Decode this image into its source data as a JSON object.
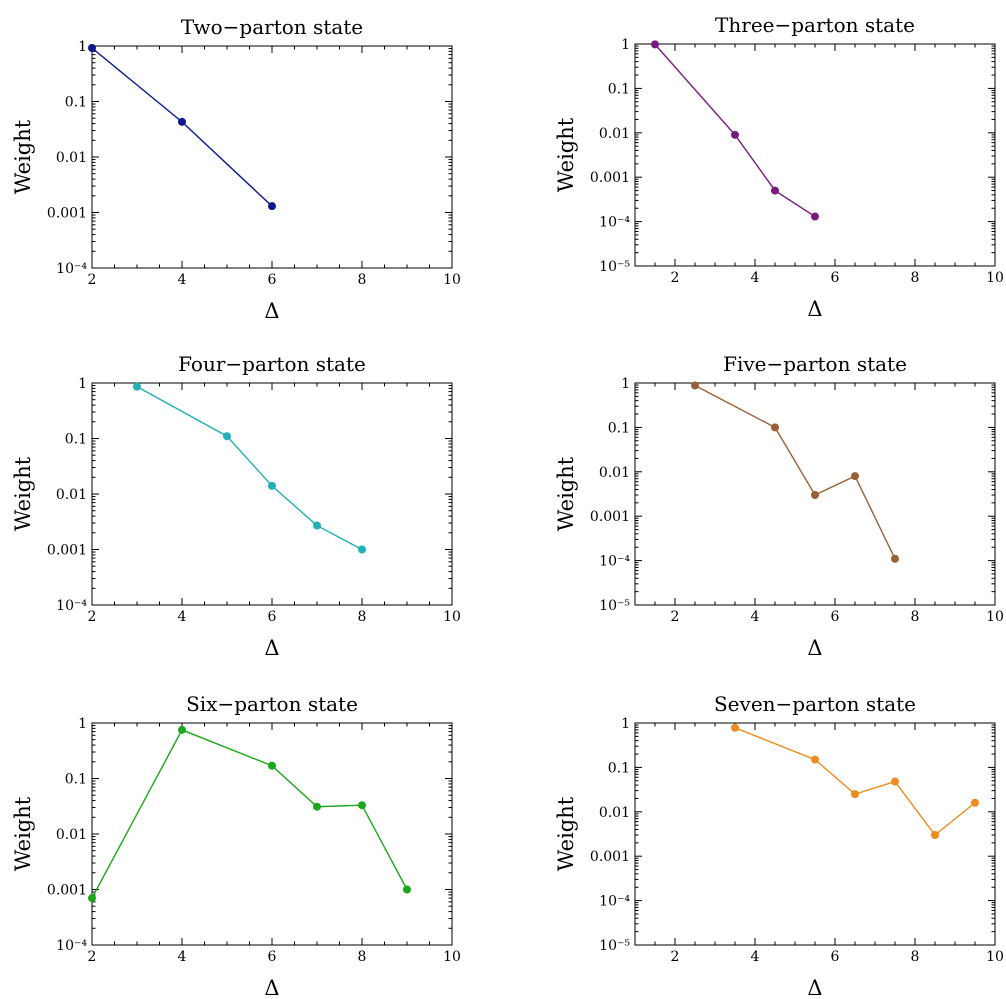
{
  "chart_data": [
    {
      "type": "line",
      "title": "Two−parton state",
      "xlabel": "Δ",
      "ylabel": "Weight",
      "xlim": [
        2,
        10
      ],
      "ylim": [
        0.0001,
        1
      ],
      "yscale": "log",
      "xticks": [
        "2",
        "4",
        "6",
        "8",
        "10"
      ],
      "yticks": [
        "1",
        "0.1",
        "0.01",
        "0.001",
        "10⁻⁴"
      ],
      "color": "#0a1a8c",
      "x": [
        2,
        4,
        6
      ],
      "y": [
        0.92,
        0.043,
        0.0013
      ]
    },
    {
      "type": "line",
      "title": "Three−parton state",
      "xlabel": "Δ",
      "ylabel": "Weight",
      "xlim": [
        1,
        10
      ],
      "ylim": [
        1e-05,
        1
      ],
      "yscale": "log",
      "xticks": [
        "2",
        "4",
        "6",
        "8",
        "10"
      ],
      "yticks": [
        "1",
        "0.1",
        "0.01",
        "0.001",
        "10⁻⁴",
        "10⁻⁵"
      ],
      "color": "#7a1a82",
      "x": [
        1.5,
        3.5,
        4.5,
        5.5
      ],
      "y": [
        0.98,
        0.009,
        0.0005,
        0.00013
      ]
    },
    {
      "type": "line",
      "title": "Four−parton state",
      "xlabel": "Δ",
      "ylabel": "Weight",
      "xlim": [
        2,
        10
      ],
      "ylim": [
        0.0001,
        1
      ],
      "yscale": "log",
      "xticks": [
        "2",
        "4",
        "6",
        "8",
        "10"
      ],
      "yticks": [
        "1",
        "0.1",
        "0.01",
        "0.001",
        "10⁻⁴"
      ],
      "color": "#1fb0b8",
      "x": [
        3,
        5,
        6,
        7,
        8
      ],
      "y": [
        0.86,
        0.11,
        0.014,
        0.0027,
        0.001
      ]
    },
    {
      "type": "line",
      "title": "Five−parton state",
      "xlabel": "Δ",
      "ylabel": "Weight",
      "xlim": [
        1,
        10
      ],
      "ylim": [
        1e-05,
        1
      ],
      "yscale": "log",
      "xticks": [
        "2",
        "4",
        "6",
        "8",
        "10"
      ],
      "yticks": [
        "1",
        "0.1",
        "0.01",
        "0.001",
        "10⁻⁴",
        "10⁻⁵"
      ],
      "color": "#9a6035",
      "x": [
        2.5,
        4.5,
        5.5,
        6.5,
        7.5
      ],
      "y": [
        0.88,
        0.1,
        0.003,
        0.008,
        0.00011
      ]
    },
    {
      "type": "line",
      "title": "Six−parton state",
      "xlabel": "Δ",
      "ylabel": "Weight",
      "xlim": [
        2,
        10
      ],
      "ylim": [
        0.0001,
        1
      ],
      "yscale": "log",
      "xticks": [
        "2",
        "4",
        "6",
        "8",
        "10"
      ],
      "yticks": [
        "1",
        "0.1",
        "0.01",
        "0.001",
        "10⁻⁴"
      ],
      "color": "#1aa81a",
      "x": [
        2,
        4,
        6,
        7,
        8,
        9
      ],
      "y": [
        0.0007,
        0.75,
        0.17,
        0.031,
        0.033,
        0.001
      ]
    },
    {
      "type": "line",
      "title": "Seven−parton state",
      "xlabel": "Δ",
      "ylabel": "Weight",
      "xlim": [
        1,
        10
      ],
      "ylim": [
        1e-05,
        1
      ],
      "yscale": "log",
      "xticks": [
        "2",
        "4",
        "6",
        "8",
        "10"
      ],
      "yticks": [
        "1",
        "0.1",
        "0.01",
        "0.001",
        "10⁻⁴",
        "10⁻⁵"
      ],
      "color": "#f08a1a",
      "x": [
        3.5,
        5.5,
        6.5,
        7.5,
        8.5,
        9.5
      ],
      "y": [
        0.78,
        0.15,
        0.025,
        0.048,
        0.003,
        0.016
      ]
    }
  ]
}
